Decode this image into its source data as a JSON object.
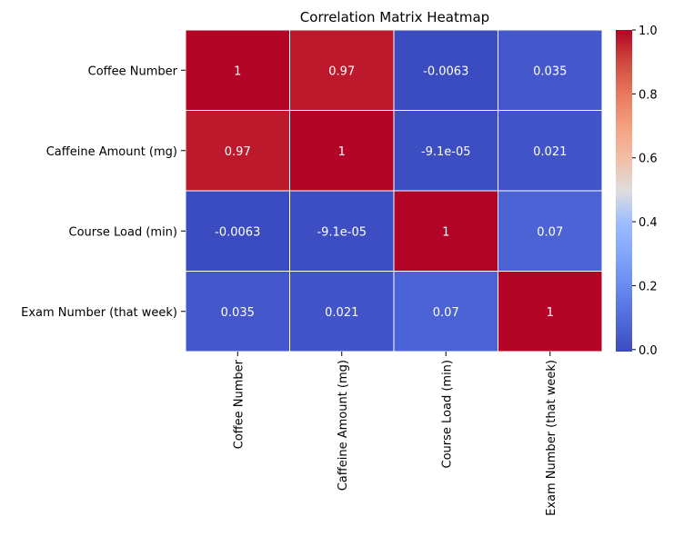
{
  "chart_data": {
    "type": "heatmap",
    "title": "Correlation Matrix Heatmap",
    "xlabel": "",
    "ylabel": "",
    "rows": [
      "Coffee Number",
      "Caffeine Amount (mg)",
      "Course Load (min)",
      "Exam Number (that week)"
    ],
    "columns": [
      "Coffee Number",
      "Caffeine Amount (mg)",
      "Course Load (min)",
      "Exam Number (that week)"
    ],
    "values": [
      [
        1,
        0.97,
        -0.0063,
        0.035
      ],
      [
        0.97,
        1,
        -9.1e-05,
        0.021
      ],
      [
        -0.0063,
        -9.1e-05,
        1,
        0.07
      ],
      [
        0.035,
        0.021,
        0.07,
        1
      ]
    ],
    "labels": [
      [
        "1",
        "0.97",
        "-0.0063",
        "0.035"
      ],
      [
        "0.97",
        "1",
        "-9.1e-05",
        "0.021"
      ],
      [
        "-0.0063",
        "-9.1e-05",
        "1",
        "0.07"
      ],
      [
        "0.035",
        "0.021",
        "0.07",
        "1"
      ]
    ],
    "colormap": "coolwarm",
    "colorbar": {
      "range": [
        -0.0063,
        1.0
      ],
      "ticks": [
        0.0,
        0.2,
        0.4,
        0.6,
        0.8,
        1.0
      ],
      "tick_labels": [
        "0.0",
        "0.2",
        "0.4",
        "0.6",
        "0.8",
        "1.0"
      ]
    },
    "cell_border_color": "#ffffff",
    "grid": false,
    "legend": "colorbar-right"
  }
}
